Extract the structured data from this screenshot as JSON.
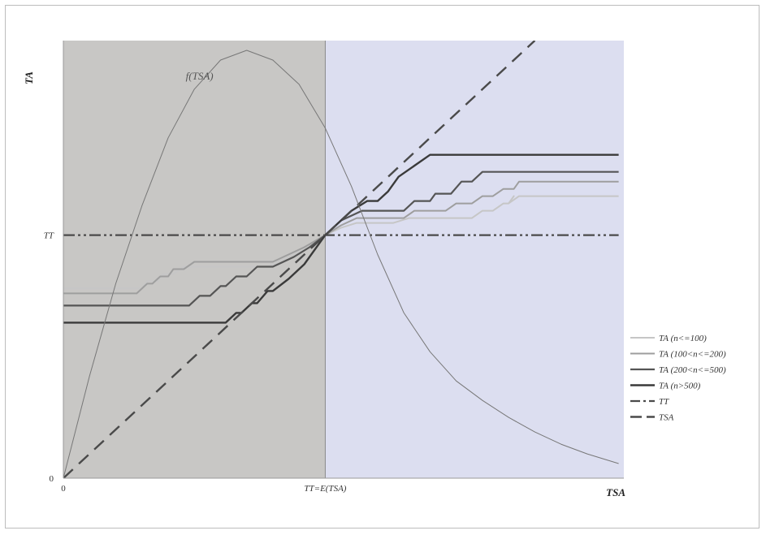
{
  "chart_data": {
    "type": "line",
    "title": "",
    "xlabel": "TSA",
    "ylabel": "TA",
    "x_ticks": [
      {
        "value": 0,
        "label": "0"
      },
      {
        "value": 50,
        "label": "TT=E(TSA)"
      }
    ],
    "y_ticks": [
      {
        "value": 0,
        "label": "0"
      },
      {
        "value": 50,
        "label": "TT"
      }
    ],
    "xlim": [
      0,
      107
    ],
    "ylim": [
      0,
      90
    ],
    "regions": [
      {
        "x_from": 0,
        "x_to": 50,
        "color": "#c8c7c5"
      },
      {
        "x_from": 50,
        "x_to": 107,
        "color": "#dcdef0"
      }
    ],
    "grid": false,
    "legend_position": "right",
    "annotations": [
      {
        "text": "f(TSA)",
        "x": 26,
        "y": 82
      }
    ],
    "series": [
      {
        "name": "TA (n<=100)",
        "color": "#c6c6c6",
        "width": 2,
        "dash": "",
        "points": [
          [
            0,
            39
          ],
          [
            15,
            39
          ],
          [
            16,
            40.5
          ],
          [
            18,
            40.5
          ],
          [
            19,
            42
          ],
          [
            21,
            42
          ],
          [
            23,
            43.5
          ],
          [
            39,
            43.5
          ],
          [
            42,
            45
          ],
          [
            46,
            47
          ],
          [
            50,
            50
          ],
          [
            53,
            51.5
          ],
          [
            56,
            52.5
          ],
          [
            63,
            52.5
          ],
          [
            66,
            53.5
          ],
          [
            78,
            53.5
          ],
          [
            80,
            55
          ],
          [
            82,
            55
          ],
          [
            84,
            56.5
          ],
          [
            85,
            56.5
          ],
          [
            86,
            58
          ],
          [
            85,
            56.5
          ],
          [
            87,
            58
          ],
          [
            106,
            58
          ]
        ]
      },
      {
        "name": "TA (100<n<=200)",
        "color": "#9e9e9e",
        "width": 2,
        "dash": "",
        "points": [
          [
            0,
            38
          ],
          [
            14,
            38
          ],
          [
            16,
            40
          ],
          [
            17,
            40
          ],
          [
            18.5,
            41.5
          ],
          [
            20,
            41.5
          ],
          [
            21,
            43
          ],
          [
            23,
            43
          ],
          [
            25,
            44.5
          ],
          [
            40,
            44.5
          ],
          [
            42,
            45.5
          ],
          [
            46,
            47.5
          ],
          [
            50,
            50
          ],
          [
            53,
            52
          ],
          [
            56,
            53.5
          ],
          [
            65,
            53.5
          ],
          [
            67,
            55
          ],
          [
            73,
            55
          ],
          [
            75,
            56.5
          ],
          [
            78,
            56.5
          ],
          [
            80,
            58
          ],
          [
            82,
            58
          ],
          [
            84,
            59.5
          ],
          [
            86,
            59.5
          ],
          [
            87,
            61
          ],
          [
            106,
            61
          ]
        ]
      },
      {
        "name": "TA (200<n<=500)",
        "color": "#555555",
        "width": 2.2,
        "dash": "",
        "points": [
          [
            0,
            35.5
          ],
          [
            24,
            35.5
          ],
          [
            26,
            37.5
          ],
          [
            28,
            37.5
          ],
          [
            30,
            39.5
          ],
          [
            31,
            39.5
          ],
          [
            33,
            41.5
          ],
          [
            35,
            41.5
          ],
          [
            37,
            43.5
          ],
          [
            40,
            43.5
          ],
          [
            44,
            45.5
          ],
          [
            47,
            47.5
          ],
          [
            50,
            50
          ],
          [
            53,
            53
          ],
          [
            57,
            55
          ],
          [
            65,
            55
          ],
          [
            67,
            57
          ],
          [
            70,
            57
          ],
          [
            71,
            58.5
          ],
          [
            74,
            58.5
          ],
          [
            76,
            61
          ],
          [
            78,
            61
          ],
          [
            80,
            63
          ],
          [
            106,
            63
          ]
        ]
      },
      {
        "name": "TA (n>500)",
        "color": "#3a3a3a",
        "width": 2.4,
        "dash": "",
        "points": [
          [
            0,
            32
          ],
          [
            31,
            32
          ],
          [
            33,
            34
          ],
          [
            34,
            34
          ],
          [
            36,
            36
          ],
          [
            37,
            36
          ],
          [
            39,
            38.5
          ],
          [
            40,
            38.5
          ],
          [
            43,
            41
          ],
          [
            46,
            44
          ],
          [
            50,
            50
          ],
          [
            55,
            55
          ],
          [
            58,
            57
          ],
          [
            60,
            57
          ],
          [
            62,
            59
          ],
          [
            64,
            62
          ],
          [
            70,
            66.5
          ],
          [
            106,
            66.5
          ]
        ]
      },
      {
        "name": "TT",
        "color": "#4a4a4a",
        "width": 2.2,
        "dash": "14,4,3,4,3,4",
        "points": [
          [
            0,
            50
          ],
          [
            106,
            50
          ]
        ]
      },
      {
        "name": "TSA",
        "color": "#4a4a4a",
        "width": 2.4,
        "dash": "16,10",
        "points": [
          [
            0,
            0
          ],
          [
            90,
            90
          ]
        ]
      },
      {
        "name": "",
        "color": "#777777",
        "width": 1,
        "dash": "",
        "points": [
          [
            0,
            0
          ],
          [
            5,
            21
          ],
          [
            10,
            40
          ],
          [
            15,
            56
          ],
          [
            20,
            70
          ],
          [
            25,
            80
          ],
          [
            30,
            86
          ],
          [
            35,
            88
          ],
          [
            40,
            86
          ],
          [
            45,
            81
          ],
          [
            50,
            72
          ],
          [
            55,
            60
          ],
          [
            60,
            46
          ],
          [
            65,
            34
          ],
          [
            70,
            26
          ],
          [
            75,
            20
          ],
          [
            80,
            16
          ],
          [
            85,
            12.5
          ],
          [
            90,
            9.5
          ],
          [
            95,
            7
          ],
          [
            100,
            5
          ],
          [
            106,
            3
          ]
        ]
      }
    ]
  }
}
